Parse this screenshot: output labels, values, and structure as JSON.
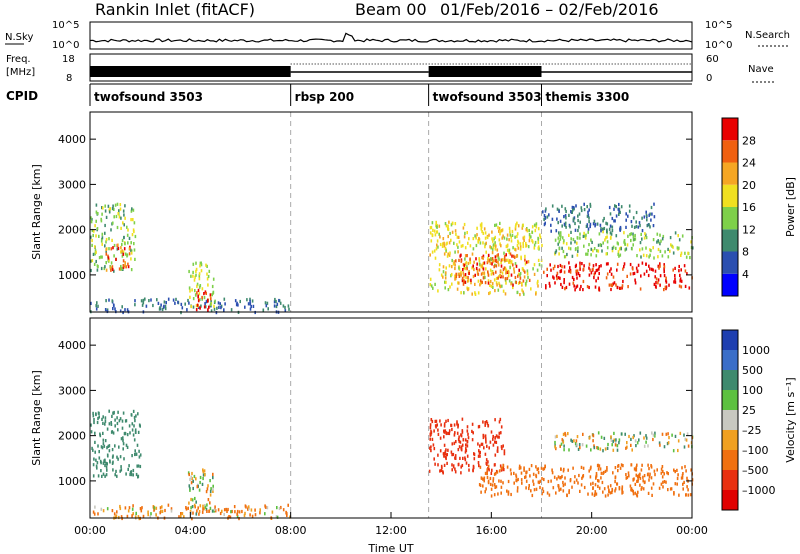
{
  "header": {
    "radar": "Rankin Inlet (fitACF)",
    "beam": "Beam 00",
    "date_range": "01/Feb/2016 – 02/Feb/2016"
  },
  "noise_panel": {
    "left_label": "N.Sky",
    "left_ticks": [
      "10^5",
      "10^0"
    ],
    "right_label": "N.Search",
    "right_ticks": [
      "10^5",
      "10^0"
    ]
  },
  "freq_panel": {
    "left_label_1": "Freq.",
    "left_label_2": "[MHz]",
    "left_ticks": [
      "18",
      "8"
    ],
    "right_label": "Nave",
    "right_ticks": [
      "60",
      "0"
    ]
  },
  "cpid_panel": {
    "label": "CPID",
    "segments": [
      {
        "name": "twofsound 3503",
        "start_h": 0.0,
        "end_h": 8.0
      },
      {
        "name": "rbsp 200",
        "start_h": 8.0,
        "end_h": 13.5
      },
      {
        "name": "twofsound 3503",
        "start_h": 13.5,
        "end_h": 18.0
      },
      {
        "name": "themis 3300",
        "start_h": 18.0,
        "end_h": 24.0
      }
    ]
  },
  "power_colorbar": {
    "label": "Power [dB]",
    "ticks": [
      "4",
      "8",
      "12",
      "16",
      "20",
      "24",
      "28"
    ],
    "colors": [
      "#0000ff",
      "#2b4fb0",
      "#3f8a6e",
      "#7ed04a",
      "#f0e020",
      "#f5a623",
      "#f06010",
      "#e80000"
    ]
  },
  "velocity_colorbar": {
    "label": "Velocity [m s⁻¹]",
    "ticks": [
      "1000",
      "500",
      "100",
      "25",
      "–25",
      "–100",
      "–500",
      "–1000"
    ],
    "colors": [
      "#1f3fb0",
      "#3a6ec8",
      "#3f8a6e",
      "#5cc040",
      "#c8c8c0",
      "#f0a020",
      "#f07010",
      "#e83010",
      "#e00000"
    ]
  },
  "axes": {
    "ylabel": "Slant Range [km]",
    "yticks": [
      "1000",
      "2000",
      "3000",
      "4000"
    ],
    "xlabel": "Time UT",
    "xticks": [
      "00:00",
      "04:00",
      "08:00",
      "12:00",
      "16:00",
      "20:00",
      "00:00"
    ]
  },
  "chart_data": [
    {
      "type": "heatmap",
      "title": "",
      "ylabel": "Slant Range [km]",
      "xlabel": "Time UT",
      "x_unit": "hours UT",
      "xlim": [
        0,
        24
      ],
      "ylim": [
        180,
        4600
      ],
      "colorbar": "Power [dB]",
      "clim": [
        0,
        32
      ],
      "regions": [
        {
          "t0": 0.0,
          "t1": 1.8,
          "r0": 1100,
          "r1": 2600,
          "value": 14
        },
        {
          "t0": 0.6,
          "t1": 1.6,
          "r0": 1100,
          "r1": 1700,
          "value": 26
        },
        {
          "t0": 0.0,
          "t1": 8.0,
          "r0": 200,
          "r1": 500,
          "value": 8
        },
        {
          "t0": 3.9,
          "t1": 5.0,
          "r0": 300,
          "r1": 1300,
          "value": 16
        },
        {
          "t0": 4.2,
          "t1": 4.8,
          "r0": 250,
          "r1": 700,
          "value": 30
        },
        {
          "t0": 13.5,
          "t1": 18.0,
          "r0": 600,
          "r1": 2200,
          "value": 18
        },
        {
          "t0": 14.5,
          "t1": 17.5,
          "r0": 800,
          "r1": 1500,
          "value": 26
        },
        {
          "t0": 18.0,
          "t1": 24.0,
          "r0": 700,
          "r1": 1300,
          "value": 30
        },
        {
          "t0": 18.5,
          "t1": 24.0,
          "r0": 1400,
          "r1": 2000,
          "value": 14
        },
        {
          "t0": 18.0,
          "t1": 22.5,
          "r0": 2000,
          "r1": 2600,
          "value": 8
        }
      ]
    },
    {
      "type": "heatmap",
      "title": "",
      "ylabel": "Slant Range [km]",
      "xlabel": "Time UT",
      "x_unit": "hours UT",
      "xlim": [
        0,
        24
      ],
      "ylim": [
        180,
        4600
      ],
      "colorbar": "Velocity [m s⁻¹]",
      "clim": [
        -1000,
        1000
      ],
      "regions": [
        {
          "t0": 0.0,
          "t1": 2.0,
          "r0": 1100,
          "r1": 2600,
          "value": 300
        },
        {
          "t0": 3.9,
          "t1": 4.9,
          "r0": 300,
          "r1": 1300,
          "value": 0
        },
        {
          "t0": 0.0,
          "t1": 8.0,
          "r0": 200,
          "r1": 500,
          "value": -150
        },
        {
          "t0": 13.5,
          "t1": 16.5,
          "r0": 1200,
          "r1": 2400,
          "value": -700
        },
        {
          "t0": 15.5,
          "t1": 24.0,
          "r0": 700,
          "r1": 1400,
          "value": -300
        },
        {
          "t0": 18.5,
          "t1": 24.0,
          "r0": 1700,
          "r1": 2100,
          "value": 0
        }
      ]
    }
  ]
}
